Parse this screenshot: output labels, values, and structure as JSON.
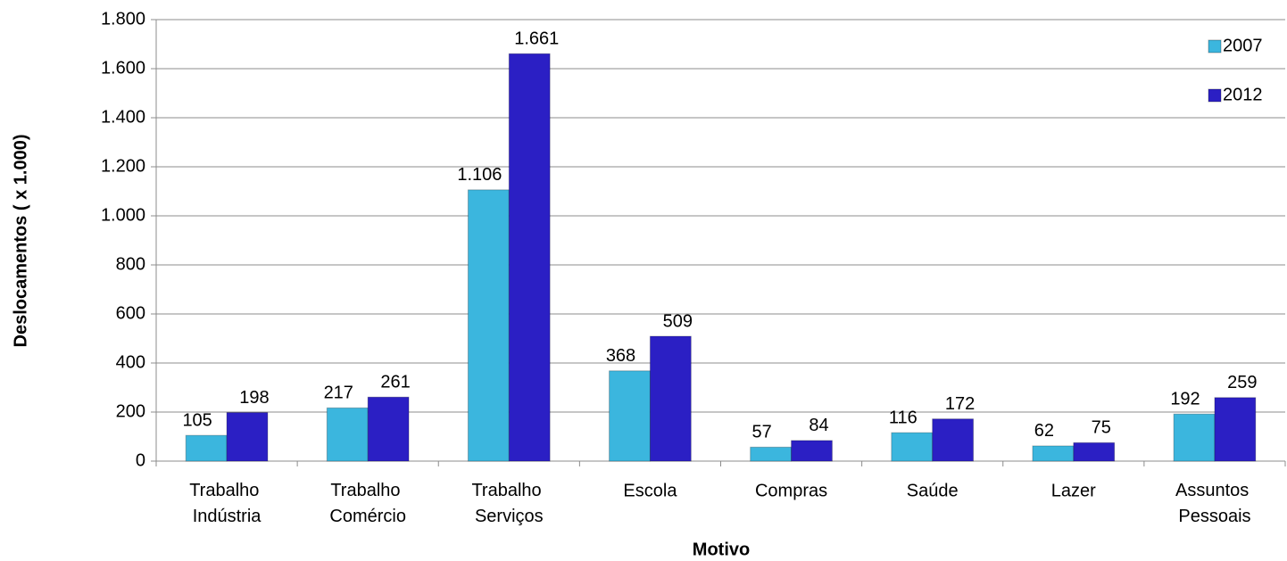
{
  "chart_data": {
    "type": "bar",
    "x_label": "Motivo",
    "y_label": "Deslocamentos ( x 1.000)",
    "categories": [
      "Trabalho Indústria",
      "Trabalho Comércio",
      "Trabalho Serviços",
      "Escola",
      "Compras",
      "Saúde",
      "Lazer",
      "Assuntos Pessoais"
    ],
    "series": [
      {
        "name": "2007",
        "color": "#3bb6de",
        "values": [
          105,
          217,
          1106,
          368,
          57,
          116,
          62,
          192
        ],
        "value_labels": [
          "105",
          "217",
          "1.106",
          "368",
          "57",
          "116",
          "62",
          "192"
        ]
      },
      {
        "name": "2012",
        "color": "#2b1fc4",
        "values": [
          198,
          261,
          1661,
          509,
          84,
          172,
          75,
          259
        ],
        "value_labels": [
          "198",
          "261",
          "1.661",
          "509",
          "84",
          "172",
          "75",
          "259"
        ]
      }
    ],
    "ylim": [
      0,
      1800
    ],
    "yticks": [
      0,
      200,
      400,
      600,
      800,
      {
        "value": 1000,
        "label": "1.000"
      },
      {
        "value": 1200,
        "label": "1.200"
      },
      {
        "value": 1400,
        "label": "1.400"
      },
      {
        "value": 1600,
        "label": "1.600"
      },
      {
        "value": 1800,
        "label": "1.800"
      }
    ],
    "grid": true,
    "legend": "top-right"
  }
}
